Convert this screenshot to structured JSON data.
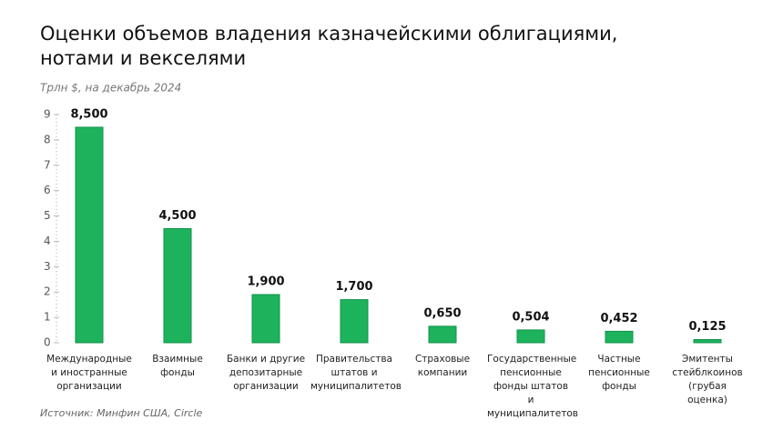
{
  "chart_data": {
    "type": "bar",
    "title": "Оценки объемов владения казначейскими облигациями,",
    "title_line2": "нотами и векселями",
    "subtitle": "Трлн $, на декабрь 2024",
    "source": "Источник: Минфин США, Circle",
    "categories": [
      "Международные\nи иностранные\nорганизации",
      "Взаимные\nфонды",
      "Банки и другие\nдепозитарные\nорганизации",
      "Правительства\nштатов и\nмуниципалитетов",
      "Страховые\nкомпании",
      "Государственные\nпенсионные\nфонды штатов\nи муниципалитетов",
      "Частные\nпенсионные\nфонды",
      "Эмитенты\nстейблкоинов\n(грубая\nоценка)"
    ],
    "values": [
      8.5,
      4.5,
      1.9,
      1.7,
      0.65,
      0.504,
      0.452,
      0.125
    ],
    "value_labels": [
      "8,500",
      "4,500",
      "1,900",
      "1,700",
      "0,650",
      "0,504",
      "0,452",
      "0,125"
    ],
    "color": "#1db35c",
    "ylim": [
      0,
      9
    ],
    "yticks": [
      0,
      1,
      2,
      3,
      4,
      5,
      6,
      7,
      8,
      9
    ]
  }
}
